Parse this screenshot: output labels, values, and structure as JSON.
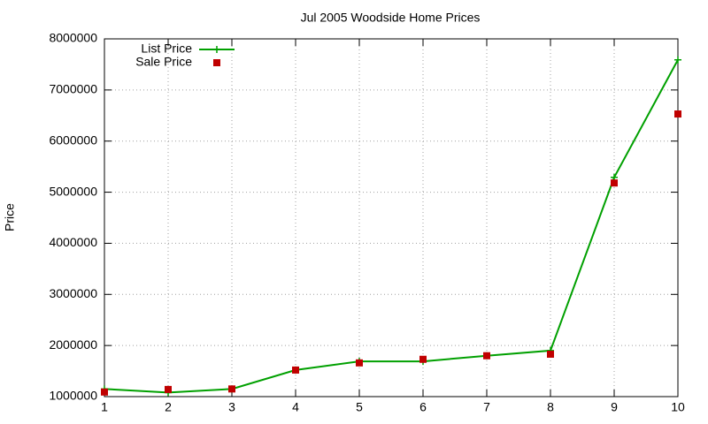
{
  "chart_data": {
    "type": "line",
    "title": "Jul 2005 Woodside Home Prices",
    "y_label": "Price",
    "x": [
      1,
      2,
      3,
      4,
      5,
      6,
      7,
      8,
      9,
      10
    ],
    "xlim": [
      1,
      10
    ],
    "xticks": [
      1,
      2,
      3,
      4,
      5,
      6,
      7,
      8,
      9,
      10
    ],
    "ylim": [
      1000000,
      8000000
    ],
    "yticks": [
      1000000,
      2000000,
      3000000,
      4000000,
      5000000,
      6000000,
      7000000,
      8000000
    ],
    "grid": true,
    "legend": "top-left",
    "series": [
      {
        "name": "List Price",
        "color": "#00a000",
        "style": "linespoints",
        "marker": "plus",
        "values": [
          1150000,
          1080000,
          1150000,
          1520000,
          1690000,
          1690000,
          1800000,
          1900000,
          5290000,
          7590000
        ]
      },
      {
        "name": "Sale Price",
        "color": "#c00000",
        "style": "points",
        "marker": "square",
        "values": [
          1090000,
          1140000,
          1150000,
          1520000,
          1660000,
          1730000,
          1800000,
          1830000,
          5180000,
          6530000
        ]
      }
    ]
  }
}
